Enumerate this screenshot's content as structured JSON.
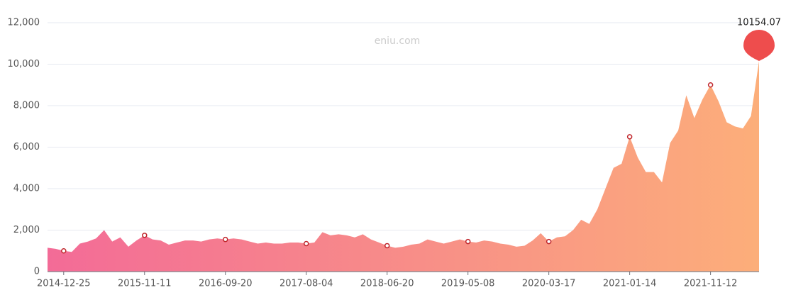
{
  "chart_data": {
    "type": "area",
    "watermark": "eniu.com",
    "peak_label": "10154.07",
    "categories": [
      null,
      null,
      "2014-12-25",
      null,
      null,
      null,
      null,
      null,
      null,
      null,
      null,
      null,
      "2015-11-11",
      null,
      null,
      null,
      null,
      null,
      null,
      null,
      null,
      null,
      "2016-09-20",
      null,
      null,
      null,
      null,
      null,
      null,
      null,
      null,
      null,
      "2017-08-04",
      null,
      null,
      null,
      null,
      null,
      null,
      null,
      null,
      null,
      "2018-06-20",
      null,
      null,
      null,
      null,
      null,
      null,
      null,
      null,
      null,
      "2019-05-08",
      null,
      null,
      null,
      null,
      null,
      null,
      null,
      null,
      null,
      "2020-03-17",
      null,
      null,
      null,
      null,
      null,
      null,
      null,
      null,
      null,
      "2021-01-14",
      null,
      null,
      null,
      null,
      null,
      null,
      null,
      null,
      null,
      "2021-11-12",
      null,
      null,
      null,
      null,
      null,
      null
    ],
    "values": [
      1150,
      1100,
      1000,
      950,
      1350,
      1450,
      1600,
      2000,
      1450,
      1650,
      1200,
      1500,
      1750,
      1550,
      1500,
      1300,
      1400,
      1500,
      1500,
      1450,
      1550,
      1600,
      1550,
      1600,
      1550,
      1450,
      1350,
      1400,
      1350,
      1350,
      1400,
      1400,
      1350,
      1400,
      1900,
      1750,
      1800,
      1750,
      1650,
      1800,
      1550,
      1400,
      1250,
      1150,
      1200,
      1300,
      1350,
      1550,
      1450,
      1350,
      1450,
      1550,
      1450,
      1400,
      1500,
      1450,
      1350,
      1300,
      1200,
      1250,
      1500,
      1850,
      1450,
      1650,
      1700,
      2000,
      2500,
      2300,
      3000,
      4000,
      5000,
      5200,
      6500,
      5500,
      4800,
      4800,
      4300,
      6200,
      6800,
      8500,
      7400,
      8300,
      9000,
      8200,
      7200,
      7000,
      6900,
      7500,
      10154.07
    ],
    "colors": [
      "#f36b97",
      "#fcae7a"
    ],
    "marker_color": "#c0262c",
    "pin_color": "#ee4d4d",
    "ylim": [
      0,
      12000
    ],
    "yticks": [
      0,
      {
        "value": 2000,
        "label": "2,000"
      },
      {
        "value": 4000,
        "label": "4,000"
      },
      {
        "value": 6000,
        "label": "6,000"
      },
      {
        "value": 8000,
        "label": "8,000"
      },
      {
        "value": 10000,
        "label": "10,000"
      },
      {
        "value": 12000,
        "label": "12,000"
      }
    ],
    "grid": true
  }
}
